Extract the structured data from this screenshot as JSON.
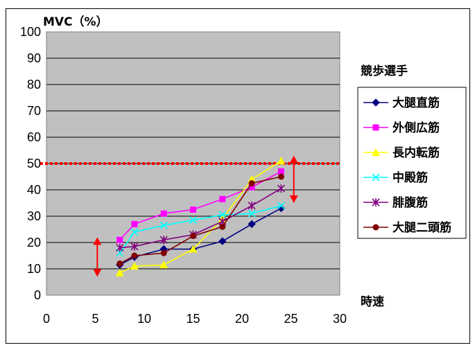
{
  "chart_data": {
    "type": "line",
    "ylabel": "MVC（%）",
    "xlabel": "時速",
    "legend_title": "競歩選手",
    "legend_position": "right",
    "xlim": [
      0,
      30
    ],
    "ylim": [
      0,
      100
    ],
    "x_ticks": [
      "0",
      "5",
      "10",
      "15",
      "20",
      "25",
      "30"
    ],
    "y_ticks": [
      "0",
      "10",
      "20",
      "30",
      "40",
      "50",
      "60",
      "70",
      "80",
      "90",
      "100"
    ],
    "grid": true,
    "reference_line": {
      "y": 50,
      "color": "#ff0000",
      "style": "dotted"
    },
    "arrows": [
      {
        "x": 5.2,
        "y_from": 7,
        "y_to": 22,
        "color": "#ff0000"
      },
      {
        "x": 25.3,
        "y_from": 35,
        "y_to": 53,
        "color": "#ff0000"
      }
    ],
    "series": [
      {
        "name": "大腿直筋",
        "color": "#000080",
        "marker": "diamond",
        "points": [
          [
            7.5,
            11.5
          ],
          [
            9,
            14.5
          ],
          [
            12,
            17.5
          ],
          [
            15,
            17.5
          ],
          [
            18,
            20.5
          ],
          [
            21,
            27
          ],
          [
            24,
            33
          ]
        ]
      },
      {
        "name": "外側広筋",
        "color": "#ff00ff",
        "marker": "square",
        "points": [
          [
            7.5,
            21
          ],
          [
            9,
            27
          ],
          [
            12,
            31
          ],
          [
            15,
            32.5
          ],
          [
            18,
            36.5
          ],
          [
            21,
            41
          ],
          [
            24,
            47
          ]
        ]
      },
      {
        "name": "長内転筋",
        "color": "#ffff00",
        "marker": "triangle",
        "points": [
          [
            7.5,
            8.5
          ],
          [
            9,
            11
          ],
          [
            12,
            11.5
          ],
          [
            15,
            17.5
          ],
          [
            18,
            29
          ],
          [
            21,
            44
          ],
          [
            24,
            51
          ]
        ]
      },
      {
        "name": "中殿筋",
        "color": "#00ffff",
        "marker": "x",
        "points": [
          [
            7.5,
            16
          ],
          [
            9,
            24
          ],
          [
            12,
            26.5
          ],
          [
            15,
            28.5
          ],
          [
            18,
            30.5
          ],
          [
            21,
            31
          ],
          [
            24,
            34
          ]
        ]
      },
      {
        "name": "腓腹筋",
        "color": "#800080",
        "marker": "star",
        "points": [
          [
            7.5,
            18
          ],
          [
            9,
            18.5
          ],
          [
            12,
            21
          ],
          [
            15,
            23
          ],
          [
            18,
            28
          ],
          [
            21,
            34
          ],
          [
            24,
            40.5
          ]
        ]
      },
      {
        "name": "大腿二頭筋",
        "color": "#800000",
        "marker": "circle",
        "points": [
          [
            7.5,
            12
          ],
          [
            9,
            15
          ],
          [
            12,
            16
          ],
          [
            15,
            22.5
          ],
          [
            18,
            26
          ],
          [
            21,
            42.5
          ],
          [
            24,
            45
          ]
        ]
      }
    ]
  }
}
